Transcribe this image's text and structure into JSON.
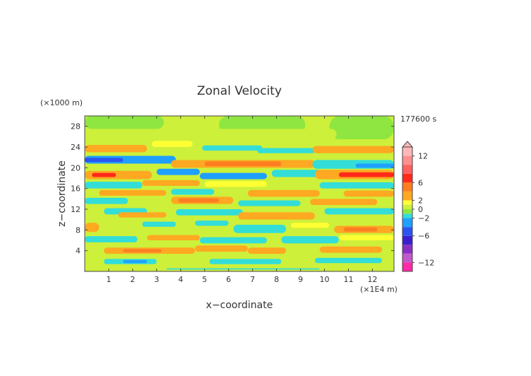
{
  "chart_data": {
    "type": "heatmap",
    "title": "Zonal Velocity",
    "xlabel": "x−coordinate",
    "ylabel": "z−coordinate",
    "x_unit": "(×1E4 m)",
    "y_unit": "(×1000 m)",
    "time_label": "177600 s",
    "xlim": [
      0,
      12.9
    ],
    "ylim": [
      0,
      30
    ],
    "x_ticks": [
      1,
      2,
      3,
      4,
      5,
      6,
      7,
      8,
      9,
      10,
      11,
      12
    ],
    "y_ticks": [
      4,
      8,
      12,
      16,
      20,
      24,
      28
    ],
    "colorbar": {
      "levels": [
        -14,
        -12,
        -10,
        -8,
        -6,
        -4,
        -2,
        -1,
        0,
        1,
        2,
        4,
        6,
        8,
        10,
        12,
        14
      ],
      "colors": [
        "#ff2aa6",
        "#c05acb",
        "#8a2fc4",
        "#3a1fd0",
        "#2a55f0",
        "#1fa0ff",
        "#33ddd8",
        "#8fe640",
        "#cdf03a",
        "#ffff33",
        "#ffa822",
        "#ff7d20",
        "#ff2a1a",
        "#ff6060",
        "#ff8f8f",
        "#ffb8b8"
      ],
      "tick_labels": [
        "12",
        "6",
        "2",
        "0",
        "−2",
        "−6",
        "−12"
      ],
      "tick_values": [
        12,
        6,
        2,
        0,
        -2,
        -6,
        -12
      ]
    },
    "bands": [
      {
        "x0": 0.0,
        "x1": 12.9,
        "z0": 0.0,
        "z1": 30.0,
        "v": 0.5
      },
      {
        "x0": 0.0,
        "x1": 3.3,
        "z0": 27.5,
        "z1": 30.0,
        "v": -0.5
      },
      {
        "x0": 3.3,
        "x1": 5.6,
        "z0": 28.5,
        "z1": 30.0,
        "v": 0.5
      },
      {
        "x0": 5.6,
        "x1": 9.2,
        "z0": 26.5,
        "z1": 30.0,
        "v": -0.5
      },
      {
        "x0": 10.2,
        "x1": 12.9,
        "z0": 25.5,
        "z1": 30.0,
        "v": -0.5
      },
      {
        "x0": 4.5,
        "x1": 10.5,
        "z0": 25.5,
        "z1": 27.5,
        "v": 0.5
      },
      {
        "x0": 0.0,
        "x1": 2.6,
        "z0": 23.0,
        "z1": 24.4,
        "v": 2.5
      },
      {
        "x0": 2.8,
        "x1": 4.5,
        "z0": 24.0,
        "z1": 25.2,
        "v": 1.5
      },
      {
        "x0": 4.9,
        "x1": 7.4,
        "z0": 23.3,
        "z1": 24.3,
        "v": -1.5
      },
      {
        "x0": 7.2,
        "x1": 9.6,
        "z0": 22.8,
        "z1": 23.8,
        "v": -1.5
      },
      {
        "x0": 9.5,
        "x1": 12.9,
        "z0": 22.8,
        "z1": 24.2,
        "v": 2.5
      },
      {
        "x0": 0.0,
        "x1": 3.8,
        "z0": 20.8,
        "z1": 22.3,
        "v": -3.0
      },
      {
        "x0": 0.0,
        "x1": 1.6,
        "z0": 21.1,
        "z1": 21.9,
        "v": -5.0
      },
      {
        "x0": 3.6,
        "x1": 9.6,
        "z0": 20.0,
        "z1": 21.5,
        "v": 3.0
      },
      {
        "x0": 5.0,
        "x1": 8.2,
        "z0": 20.3,
        "z1": 21.2,
        "v": 4.5
      },
      {
        "x0": 9.5,
        "x1": 12.9,
        "z0": 19.8,
        "z1": 21.5,
        "v": -2.0
      },
      {
        "x0": 11.3,
        "x1": 12.9,
        "z0": 20.0,
        "z1": 20.8,
        "v": -4.0
      },
      {
        "x0": 0.0,
        "x1": 2.8,
        "z0": 17.8,
        "z1": 19.4,
        "v": 2.5
      },
      {
        "x0": 0.3,
        "x1": 1.3,
        "z0": 18.2,
        "z1": 19.0,
        "v": 7.0
      },
      {
        "x0": 3.0,
        "x1": 4.8,
        "z0": 18.6,
        "z1": 19.8,
        "v": -2.5
      },
      {
        "x0": 4.8,
        "x1": 7.6,
        "z0": 17.8,
        "z1": 19.0,
        "v": -3.0
      },
      {
        "x0": 7.8,
        "x1": 10.0,
        "z0": 18.2,
        "z1": 19.6,
        "v": -1.5
      },
      {
        "x0": 9.6,
        "x1": 12.9,
        "z0": 17.8,
        "z1": 19.6,
        "v": 3.0
      },
      {
        "x0": 10.6,
        "x1": 12.9,
        "z0": 18.2,
        "z1": 19.1,
        "v": 7.0
      },
      {
        "x0": 0.0,
        "x1": 2.4,
        "z0": 16.0,
        "z1": 17.3,
        "v": -1.5
      },
      {
        "x0": 2.4,
        "x1": 4.8,
        "z0": 16.5,
        "z1": 17.6,
        "v": 2.5
      },
      {
        "x0": 5.0,
        "x1": 7.6,
        "z0": 16.3,
        "z1": 17.4,
        "v": 1.5
      },
      {
        "x0": 9.8,
        "x1": 12.9,
        "z0": 16.0,
        "z1": 17.2,
        "v": -1.5
      },
      {
        "x0": 0.6,
        "x1": 3.4,
        "z0": 14.6,
        "z1": 15.7,
        "v": 2.5
      },
      {
        "x0": 3.6,
        "x1": 5.4,
        "z0": 14.8,
        "z1": 15.9,
        "v": -1.5
      },
      {
        "x0": 6.8,
        "x1": 9.8,
        "z0": 14.4,
        "z1": 15.7,
        "v": 2.5
      },
      {
        "x0": 10.8,
        "x1": 12.9,
        "z0": 14.4,
        "z1": 15.6,
        "v": 2.5
      },
      {
        "x0": 0.0,
        "x1": 1.8,
        "z0": 13.0,
        "z1": 14.2,
        "v": -1.5
      },
      {
        "x0": 3.6,
        "x1": 6.2,
        "z0": 13.0,
        "z1": 14.4,
        "v": 3.0
      },
      {
        "x0": 3.9,
        "x1": 5.6,
        "z0": 13.3,
        "z1": 14.1,
        "v": 5.0
      },
      {
        "x0": 6.4,
        "x1": 9.0,
        "z0": 12.6,
        "z1": 13.7,
        "v": -2.0
      },
      {
        "x0": 9.4,
        "x1": 12.2,
        "z0": 12.8,
        "z1": 14.0,
        "v": 2.5
      },
      {
        "x0": 0.8,
        "x1": 2.6,
        "z0": 11.0,
        "z1": 12.2,
        "v": -1.5
      },
      {
        "x0": 1.4,
        "x1": 3.4,
        "z0": 10.4,
        "z1": 11.4,
        "v": 2.5
      },
      {
        "x0": 3.8,
        "x1": 6.6,
        "z0": 10.8,
        "z1": 12.0,
        "v": -1.5
      },
      {
        "x0": 6.4,
        "x1": 9.6,
        "z0": 10.0,
        "z1": 11.4,
        "v": 2.5
      },
      {
        "x0": 10.0,
        "x1": 12.9,
        "z0": 11.0,
        "z1": 12.2,
        "v": -1.5
      },
      {
        "x0": 0.0,
        "x1": 0.6,
        "z0": 7.6,
        "z1": 9.4,
        "v": 3.0
      },
      {
        "x0": 2.4,
        "x1": 3.8,
        "z0": 8.6,
        "z1": 9.6,
        "v": -1.5
      },
      {
        "x0": 4.6,
        "x1": 6.0,
        "z0": 8.8,
        "z1": 9.8,
        "v": -1.5
      },
      {
        "x0": 6.2,
        "x1": 8.4,
        "z0": 7.4,
        "z1": 9.0,
        "v": -2.0
      },
      {
        "x0": 8.6,
        "x1": 10.2,
        "z0": 8.4,
        "z1": 9.4,
        "v": 1.5
      },
      {
        "x0": 10.4,
        "x1": 12.9,
        "z0": 7.4,
        "z1": 8.8,
        "v": 2.5
      },
      {
        "x0": 10.8,
        "x1": 12.2,
        "z0": 7.7,
        "z1": 8.5,
        "v": 5.0
      },
      {
        "x0": 0.0,
        "x1": 2.2,
        "z0": 5.6,
        "z1": 6.8,
        "v": -1.5
      },
      {
        "x0": 2.6,
        "x1": 4.8,
        "z0": 6.0,
        "z1": 7.0,
        "v": 2.5
      },
      {
        "x0": 4.8,
        "x1": 7.6,
        "z0": 5.4,
        "z1": 6.6,
        "v": -1.5
      },
      {
        "x0": 8.2,
        "x1": 10.6,
        "z0": 5.4,
        "z1": 6.8,
        "v": -1.5
      },
      {
        "x0": 10.6,
        "x1": 12.9,
        "z0": 6.0,
        "z1": 7.0,
        "v": 1.5
      },
      {
        "x0": 0.8,
        "x1": 4.6,
        "z0": 3.4,
        "z1": 4.6,
        "v": 3.0
      },
      {
        "x0": 1.6,
        "x1": 3.2,
        "z0": 3.7,
        "z1": 4.3,
        "v": 5.0
      },
      {
        "x0": 4.6,
        "x1": 6.8,
        "z0": 3.8,
        "z1": 5.0,
        "v": 2.0
      },
      {
        "x0": 6.8,
        "x1": 8.4,
        "z0": 3.4,
        "z1": 4.6,
        "v": 3.0
      },
      {
        "x0": 9.8,
        "x1": 12.4,
        "z0": 3.6,
        "z1": 4.8,
        "v": 2.0
      },
      {
        "x0": 0.8,
        "x1": 3.0,
        "z0": 1.4,
        "z1": 2.4,
        "v": -1.5
      },
      {
        "x0": 1.6,
        "x1": 2.6,
        "z0": 1.6,
        "z1": 2.2,
        "v": -3.0
      },
      {
        "x0": 5.2,
        "x1": 8.2,
        "z0": 1.4,
        "z1": 2.4,
        "v": -1.5
      },
      {
        "x0": 9.6,
        "x1": 12.4,
        "z0": 1.6,
        "z1": 2.6,
        "v": -1.5
      },
      {
        "x0": 3.4,
        "x1": 9.8,
        "z0": 0.0,
        "z1": 0.6,
        "v": -1.5
      },
      {
        "x0": 0.0,
        "x1": 12.9,
        "z0": 0.0,
        "z1": 0.35,
        "v": 0.5
      }
    ]
  }
}
